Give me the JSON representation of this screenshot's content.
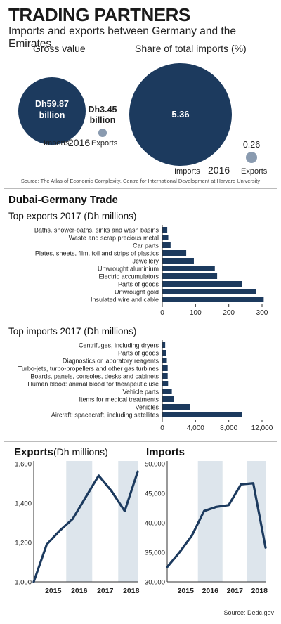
{
  "header": {
    "title": "TRADING PARTNERS",
    "subtitle": "Imports and exports between Germany and the Emirates"
  },
  "gross": {
    "heading": "Gross value",
    "imports_value": "Dh59.87 billion",
    "imports_value_line1": "Dh59.87",
    "imports_value_line2": "billion",
    "exports_value_line1": "Dh3.45",
    "exports_value_line2": "billion",
    "imports_label": "Imports",
    "exports_label": "Exports",
    "year": "2016"
  },
  "share": {
    "heading": "Share of total imports (%)",
    "imports_value": "5.36",
    "exports_value": "0.26",
    "imports_label": "Imports",
    "exports_label": "Exports",
    "year": "2016"
  },
  "source_top": "Source: The Atlas of Economic Complexity, Centre for International Development at Harvard University",
  "dubai_section": "Dubai-Germany Trade",
  "source_bottom": "Source: Dedc.gov",
  "colors": {
    "navy": "#1c3a5e",
    "grey_circle": "#8a9bb0",
    "band": "#dde5ec"
  },
  "chart_data": [
    {
      "type": "bar",
      "orientation": "horizontal",
      "title": "Top exports 2017 (Dh millions)",
      "categories": [
        "Baths. shower-baths, sinks and wash basins",
        "Waste and scrap precious metal",
        "Car parts",
        "Plates, sheets, film, foil and strips of plastics",
        "Jewellery",
        "Unwrought aluminium",
        "Electric accumulators",
        "Parts of goods",
        "Unwrought gold",
        "Insulated wire and cable"
      ],
      "values": [
        15,
        18,
        25,
        72,
        95,
        158,
        165,
        240,
        282,
        305
      ],
      "xlim": [
        0,
        300
      ],
      "xticks": [
        "0",
        "100",
        "200",
        "300"
      ],
      "color": "#1c3a5e"
    },
    {
      "type": "bar",
      "orientation": "horizontal",
      "title": "Top imports 2017 (Dh millions)",
      "categories": [
        "Centrifuges, including dryers",
        "Parts of goods",
        "Diagnostics or laboratory reagents",
        "Turbo-jets, turbo-propellers and other gas turbines",
        "Boards, panels, consoles, desks and cabinets",
        "Human blood: animal blood for therapeutic use",
        "Vehicle parts",
        "Items for medical treatments",
        "Vehicles",
        "Aircraft; spacecraft, including satellites"
      ],
      "values": [
        350,
        450,
        550,
        650,
        650,
        700,
        1150,
        1400,
        3300,
        9600
      ],
      "xlim": [
        0,
        12000
      ],
      "xticks": [
        "0",
        "4,000",
        "8,000",
        "12,000"
      ],
      "color": "#1c3a5e"
    },
    {
      "type": "line",
      "title": "Exports",
      "title_suffix": "(Dh millions)",
      "x": [
        "2014",
        "2015",
        "2015-06",
        "2016",
        "2016-06",
        "2017",
        "2017-06",
        "2018",
        "2018-06"
      ],
      "values": [
        1000,
        1190,
        1260,
        1320,
        1430,
        1540,
        1460,
        1360,
        1560
      ],
      "xticks": [
        "2015",
        "2016",
        "2017",
        "2018"
      ],
      "yticks": [
        "1,000",
        "1,200",
        "1,400",
        "1,600"
      ],
      "ylim": [
        1000,
        1600
      ],
      "color": "#1c3a5e"
    },
    {
      "type": "line",
      "title": "Imports",
      "x": [
        "2014",
        "2015",
        "2015-06",
        "2016",
        "2016-06",
        "2017",
        "2017-06",
        "2018",
        "2018-06"
      ],
      "values": [
        32500,
        35000,
        37800,
        42000,
        42700,
        43000,
        46500,
        46700,
        35800
      ],
      "xticks": [
        "2015",
        "2016",
        "2017",
        "2018"
      ],
      "yticks": [
        "30,000",
        "35,000",
        "40,000",
        "45,000",
        "50,000"
      ],
      "ylim": [
        30000,
        50000
      ],
      "color": "#1c3a5e"
    }
  ]
}
